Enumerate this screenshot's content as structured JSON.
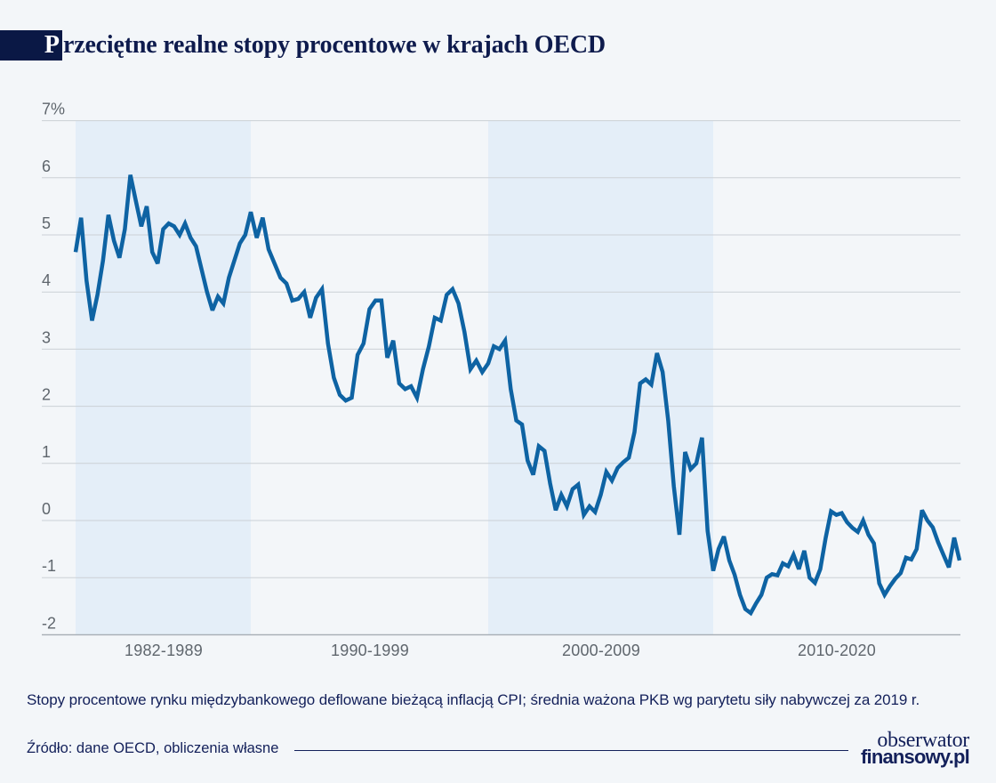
{
  "header": {
    "title": "Przeciętne realne stopy procentowe w krajach OECD",
    "title_initial": "P",
    "title_rest": "rzeciętne realne stopy procentowe w krajach OECD"
  },
  "chart_data": {
    "type": "line",
    "title": "Przeciętne realne stopy procentowe w krajach OECD",
    "unit": "%",
    "ylabel": "",
    "xlabel": "",
    "ylim": [
      -2,
      7
    ],
    "grid": true,
    "legend": false,
    "y_ticks": [
      "7%",
      "6",
      "5",
      "4",
      "3",
      "2",
      "1",
      "0",
      "-1",
      "-2"
    ],
    "y_tick_values": [
      7,
      6,
      5,
      4,
      3,
      2,
      1,
      0,
      -1,
      -2
    ],
    "x_categories": [
      "1982-1989",
      "1990-1999",
      "2000-2009",
      "2010-2020"
    ],
    "shaded_periods": [
      "1982-1989",
      "2000-2009"
    ],
    "line_color": "#0e63a3",
    "band_color": "#e4eef8",
    "series": [
      {
        "period": "1982-1989",
        "values": [
          4.7,
          5.3,
          4.2,
          3.5,
          3.95,
          4.55,
          5.35,
          4.9,
          4.6,
          5.1,
          6.05,
          5.6,
          5.15,
          5.5,
          4.7,
          4.5,
          5.1,
          5.2,
          5.15,
          5.0,
          5.2,
          4.95,
          4.8,
          4.4,
          4.0,
          3.68,
          3.92,
          3.8,
          4.25,
          4.55,
          4.85,
          5.0
        ]
      },
      {
        "period": "1990-1999",
        "values": [
          5.4,
          4.95,
          5.3,
          4.75,
          4.5,
          4.25,
          4.15,
          3.85,
          3.88,
          4.0,
          3.55,
          3.9,
          4.05,
          3.1,
          2.5,
          2.2,
          2.1,
          2.15,
          2.9,
          3.1,
          3.7,
          3.85,
          3.85,
          2.85,
          3.15,
          2.4,
          2.3,
          2.35,
          2.15,
          2.65,
          3.05,
          3.55,
          3.5,
          3.95,
          4.05,
          3.8,
          3.3,
          2.65,
          2.8,
          2.6
        ]
      },
      {
        "period": "2000-2009",
        "values": [
          2.75,
          3.05,
          3.0,
          3.15,
          2.3,
          1.75,
          1.68,
          1.05,
          0.8,
          1.3,
          1.22,
          0.65,
          0.18,
          0.45,
          0.25,
          0.55,
          0.63,
          0.1,
          0.25,
          0.15,
          0.45,
          0.85,
          0.7,
          0.92,
          1.02,
          1.1,
          1.55,
          2.4,
          2.47,
          2.38,
          2.93,
          2.6,
          1.75,
          0.6,
          -0.25,
          1.2,
          0.9,
          1.0,
          1.45,
          -0.18
        ]
      },
      {
        "period": "2010-2020",
        "values": [
          -0.88,
          -0.5,
          -0.28,
          -0.7,
          -0.95,
          -1.3,
          -1.55,
          -1.62,
          -1.45,
          -1.3,
          -1.0,
          -0.94,
          -0.96,
          -0.75,
          -0.8,
          -0.6,
          -0.85,
          -0.53,
          -1.0,
          -1.09,
          -0.85,
          -0.3,
          0.16,
          0.1,
          0.13,
          -0.03,
          -0.13,
          -0.2,
          0.0,
          -0.25,
          -0.4,
          -1.1,
          -1.3,
          -1.15,
          -1.02,
          -0.92,
          -0.65,
          -0.68,
          -0.5,
          0.18,
          0.0,
          -0.12,
          -0.38,
          -0.6,
          -0.82,
          -0.3,
          -0.7
        ]
      }
    ]
  },
  "footnote": "Stopy procentowe rynku międzybankowego deflowane bieżącą inflacją CPI; średnia ważona PKB wg parytetu siły nabywczej za 2019 r.",
  "source": "Źródło: dane OECD, obliczenia własne",
  "logo": {
    "line1": "obserwator",
    "line2": "finansowy.pl"
  }
}
